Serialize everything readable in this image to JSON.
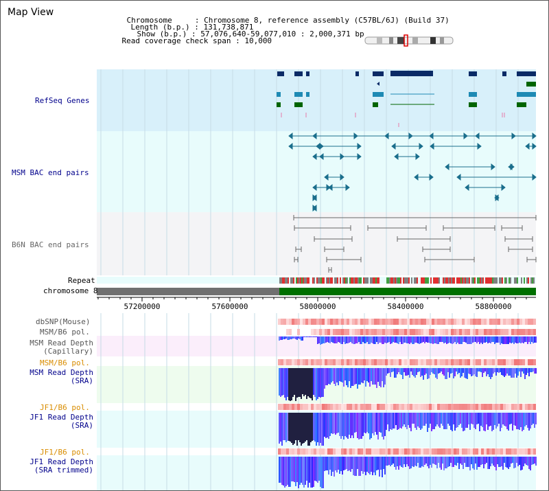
{
  "view_title": "Map View",
  "info": {
    "chromosome_key": "Chromosome    ",
    "chromosome_val": ": Chromosome 8, reference assembly (C57BL/6J) (Build 37)",
    "length_key": "Length (b.p.)",
    "length_val": ": 131,738,871",
    "show_key": "Show (b.p.)",
    "show_val": ": 57,076,640-59,077,010 : 2,000,371 bp",
    "coverage_key": "Read coverage check span",
    "coverage_val": ": 10,000"
  },
  "tracks": {
    "refseq": "RefSeq Genes",
    "msm_bac": "MSM BAC end pairs",
    "b6n_bac": "B6N BAC end pairs",
    "repeat": "Repeat",
    "chromosome": "chromosome 8",
    "dbsnp": "dbSNP(Mouse)",
    "msm_b6_pol_1": "MSM/B6 pol.",
    "msm_depth_cap_1": "MSM Read Depth",
    "msm_depth_cap_2": "(Capillary)",
    "msm_b6_pol_2": "MSM/B6 pol.",
    "msm_depth_sra_1": "MSM Read Depth",
    "msm_depth_sra_2": "(SRA)",
    "jf1_b6_pol_1": "JF1/B6 pol.",
    "jf1_depth_sra_1": "JF1 Read Depth",
    "jf1_depth_sra_2": "(SRA)",
    "jf1_b6_pol_2": "JF1/B6 pol.",
    "jf1_depth_trim_1": "JF1 Read Depth",
    "jf1_depth_trim_2": "(SRA trimmed)"
  },
  "ruler": {
    "ticks": [
      "57200000",
      "57600000",
      "58000000",
      "58400000",
      "58800000"
    ]
  },
  "colors": {
    "label_blue": "#00008b",
    "label_orange": "#d98c00",
    "refseq_bg": "#d8f0fa",
    "gene_dark": "#0a2a66",
    "gene_teal": "#1e8ab4",
    "gene_green": "#006400",
    "bac_line": "#1a6e8c",
    "b6n_line": "#666666",
    "chrom_gray": "#707070",
    "chrom_green": "#007000",
    "depth_blue": "#1a1aff",
    "snp_red": "#f0a0a0"
  }
}
